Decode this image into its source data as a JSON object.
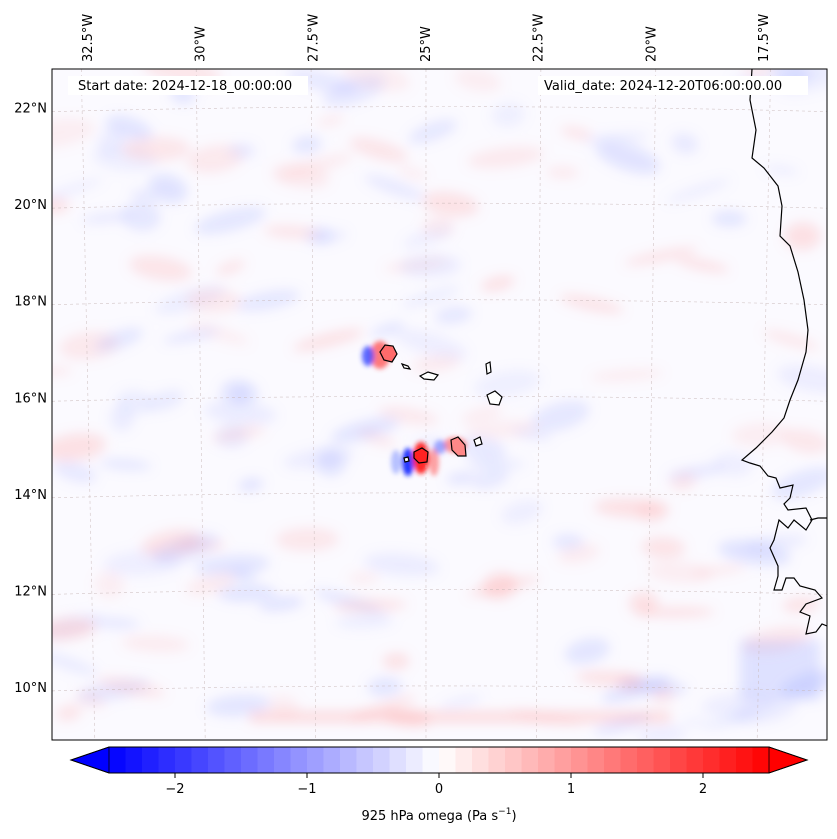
{
  "map": {
    "start_date": "Start date: 2024-12-18_00:00:00",
    "valid_date": "Valid_date: 2024-12-20T06:00:00.00",
    "lon_labels": [
      "32.5°W",
      "30°W",
      "27.5°W",
      "25°W",
      "22.5°W",
      "20°W",
      "17.5°W"
    ],
    "lat_labels": [
      "22°N",
      "20°N",
      "18°N",
      "16°N",
      "14°N",
      "12°N",
      "10°N"
    ],
    "lon_values": [
      -32.5,
      -30,
      -27.5,
      -25,
      -22.5,
      -20,
      -17.5
    ],
    "lat_values": [
      22,
      20,
      18,
      16,
      14,
      12,
      10
    ],
    "lon_range": [
      -33.3,
      -16.1
    ],
    "lat_range": [
      8.9,
      22.8
    ],
    "field": "925 hPa omega",
    "colormap": "bwr"
  },
  "colorbar": {
    "label_main": "925 hPa omega (Pa s",
    "label_exp": "−1",
    "label_close": ")",
    "ticks": [
      "−2",
      "−1",
      "0",
      "1",
      "2"
    ],
    "tick_values": [
      -2,
      -1,
      0,
      1,
      2
    ],
    "range": [
      -2.5,
      2.5
    ],
    "extend": "both",
    "colors": {
      "min": "#0000ff",
      "mid": "#ffffff",
      "max": "#ff0000"
    }
  }
}
